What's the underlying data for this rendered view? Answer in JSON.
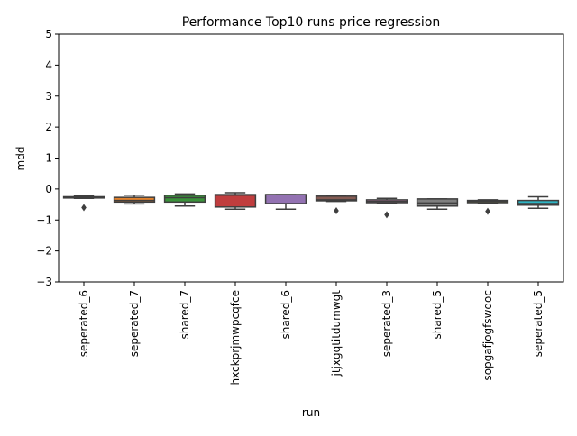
{
  "chart_data": {
    "type": "box",
    "title": "Performance Top10 runs price regression",
    "xlabel": "run",
    "ylabel": "mdd",
    "ylim": [
      -3,
      5
    ],
    "yticks": [
      -3,
      -2,
      -1,
      0,
      1,
      2,
      3,
      4,
      5
    ],
    "ytick_labels": [
      "−3",
      "−2",
      "−1",
      "0",
      "1",
      "2",
      "3",
      "4",
      "5"
    ],
    "grid": false,
    "legend": "none",
    "categories": [
      "seperated_6",
      "seperated_7",
      "shared_7",
      "hxckprjmwpcqfce",
      "shared_6",
      "jtjxgqtitdumwgt",
      "seperated_3",
      "shared_5",
      "sopgafjogfswdoc",
      "seperated_5"
    ],
    "colors": [
      "#3274a1",
      "#e1812c",
      "#3a923a",
      "#c03d3e",
      "#9372b2",
      "#845b53",
      "#d684bd",
      "#7f7f7f",
      "#a9aa35",
      "#2eb4c4"
    ],
    "boxes": [
      {
        "name": "seperated_6",
        "whisker_low": -0.3,
        "q1": -0.29,
        "median": -0.27,
        "q3": -0.25,
        "whisker_high": -0.22,
        "outliers": [
          -0.6
        ]
      },
      {
        "name": "seperated_7",
        "whisker_low": -0.48,
        "q1": -0.42,
        "median": -0.37,
        "q3": -0.27,
        "whisker_high": -0.2,
        "outliers": []
      },
      {
        "name": "shared_7",
        "whisker_low": -0.55,
        "q1": -0.42,
        "median": -0.28,
        "q3": -0.2,
        "whisker_high": -0.16,
        "outliers": []
      },
      {
        "name": "hxckprjmwpcqfce",
        "whisker_low": -0.65,
        "q1": -0.58,
        "median": -0.2,
        "q3": -0.18,
        "whisker_high": -0.12,
        "outliers": []
      },
      {
        "name": "shared_6",
        "whisker_low": -0.65,
        "q1": -0.47,
        "median": -0.18,
        "q3": -0.18,
        "whisker_high": -0.18,
        "outliers": []
      },
      {
        "name": "jtjxgqtitdumwgt",
        "whisker_low": -0.4,
        "q1": -0.38,
        "median": -0.35,
        "q3": -0.23,
        "whisker_high": -0.2,
        "outliers": [
          -0.7
        ]
      },
      {
        "name": "seperated_3",
        "whisker_low": -0.45,
        "q1": -0.44,
        "median": -0.4,
        "q3": -0.35,
        "whisker_high": -0.3,
        "outliers": [
          -0.83
        ]
      },
      {
        "name": "shared_5",
        "whisker_low": -0.65,
        "q1": -0.55,
        "median": -0.45,
        "q3": -0.32,
        "whisker_high": -0.32,
        "outliers": []
      },
      {
        "name": "sopgafjogfswdoc",
        "whisker_low": -0.45,
        "q1": -0.44,
        "median": -0.4,
        "q3": -0.37,
        "whisker_high": -0.35,
        "outliers": [
          -0.72
        ]
      },
      {
        "name": "seperated_5",
        "whisker_low": -0.62,
        "q1": -0.52,
        "median": -0.47,
        "q3": -0.37,
        "whisker_high": -0.25,
        "outliers": []
      }
    ]
  }
}
